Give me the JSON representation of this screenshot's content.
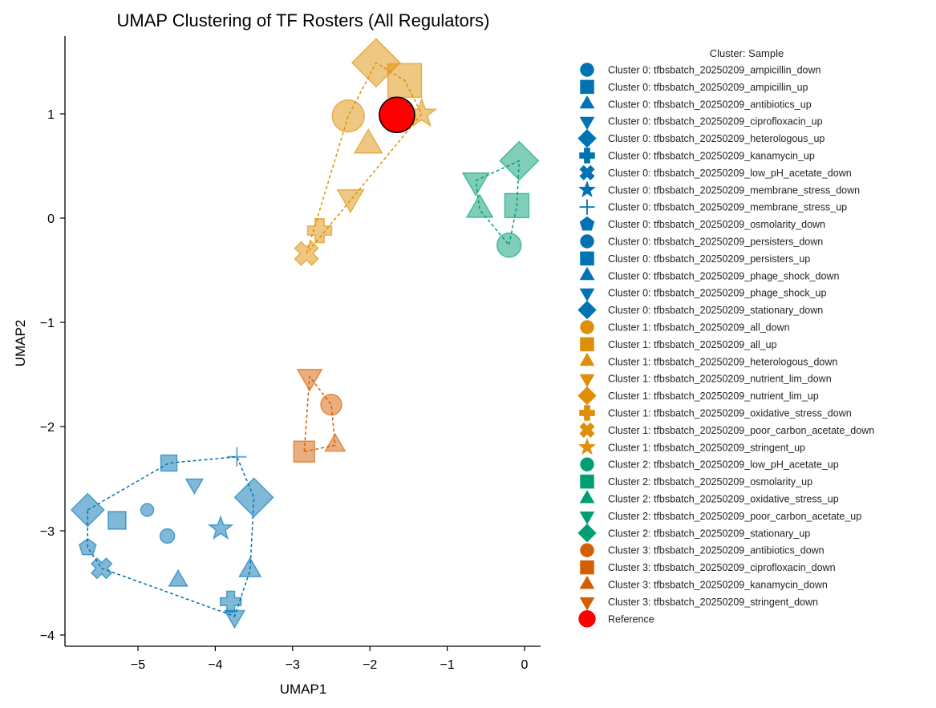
{
  "chart_data": {
    "type": "scatter",
    "title": "UMAP Clustering of TF Rosters (All Regulators)",
    "xlabel": "UMAP1",
    "ylabel": "UMAP2",
    "xlim": [
      -5.95,
      0.2
    ],
    "ylim": [
      -4.1,
      1.75
    ],
    "xticks": [
      -5,
      -4,
      -3,
      -2,
      -1,
      0
    ],
    "yticks": [
      -4,
      -3,
      -2,
      -1,
      0,
      1
    ],
    "grid": false,
    "legend_title": "Cluster: Sample",
    "legend_position": "right, outside plot",
    "cluster_colors": [
      "#0173b2",
      "#de8f05",
      "#029e73",
      "#d55e00"
    ],
    "reference_color": "#ff0000",
    "series": [
      {
        "name": "Cluster 0: tfbsbatch_20250209_ampicillin_down",
        "cluster": 0,
        "marker": "circle",
        "x": -4.88,
        "y": -2.8,
        "size": 16
      },
      {
        "name": "Cluster 0: tfbsbatch_20250209_ampicillin_up",
        "cluster": 0,
        "marker": "square",
        "x": -5.27,
        "y": -2.9,
        "size": 22
      },
      {
        "name": "Cluster 0: tfbsbatch_20250209_antibiotics_up",
        "cluster": 0,
        "marker": "triangle-up",
        "x": -4.48,
        "y": -3.48,
        "size": 24
      },
      {
        "name": "Cluster 0: tfbsbatch_20250209_ciprofloxacin_up",
        "cluster": 0,
        "marker": "triangle-down",
        "x": -4.27,
        "y": -2.55,
        "size": 22
      },
      {
        "name": "Cluster 0: tfbsbatch_20250209_heterologous_up",
        "cluster": 0,
        "marker": "diamond",
        "x": -3.5,
        "y": -2.68,
        "size": 40
      },
      {
        "name": "Cluster 0: tfbsbatch_20250209_kanamycin_up",
        "cluster": 0,
        "marker": "plus",
        "x": -3.8,
        "y": -3.68,
        "size": 26
      },
      {
        "name": "Cluster 0: tfbsbatch_20250209_low_pH_acetate_down",
        "cluster": 0,
        "marker": "x",
        "x": -5.47,
        "y": -3.36,
        "size": 26
      },
      {
        "name": "Cluster 0: tfbsbatch_20250209_membrane_stress_down",
        "cluster": 0,
        "marker": "star",
        "x": -3.93,
        "y": -2.98,
        "size": 26
      },
      {
        "name": "Cluster 0: tfbsbatch_20250209_membrane_stress_up",
        "cluster": 0,
        "marker": "thin-plus",
        "x": -3.72,
        "y": -2.29,
        "size": 24
      },
      {
        "name": "Cluster 0: tfbsbatch_20250209_osmolarity_down",
        "cluster": 0,
        "marker": "pentagon",
        "x": -5.65,
        "y": -3.16,
        "size": 22
      },
      {
        "name": "Cluster 0: tfbsbatch_20250209_persisters_down",
        "cluster": 0,
        "marker": "circle",
        "x": -4.62,
        "y": -3.05,
        "size": 18
      },
      {
        "name": "Cluster 0: tfbsbatch_20250209_persisters_up",
        "cluster": 0,
        "marker": "square",
        "x": -4.6,
        "y": -2.35,
        "size": 20
      },
      {
        "name": "Cluster 0: tfbsbatch_20250209_phage_shock_down",
        "cluster": 0,
        "marker": "triangle-up",
        "x": -3.55,
        "y": -3.38,
        "size": 28
      },
      {
        "name": "Cluster 0: tfbsbatch_20250209_phage_shock_up",
        "cluster": 0,
        "marker": "triangle-down",
        "x": -3.75,
        "y": -3.82,
        "size": 26
      },
      {
        "name": "Cluster 0: tfbsbatch_20250209_stationary_down",
        "cluster": 0,
        "marker": "diamond",
        "x": -5.65,
        "y": -2.8,
        "size": 34
      },
      {
        "name": "Cluster 1: tfbsbatch_20250209_all_down",
        "cluster": 1,
        "marker": "circle",
        "x": -2.28,
        "y": 0.98,
        "size": 40
      },
      {
        "name": "Cluster 1: tfbsbatch_20250209_all_up",
        "cluster": 1,
        "marker": "square",
        "x": -1.55,
        "y": 1.32,
        "size": 42
      },
      {
        "name": "Cluster 1: tfbsbatch_20250209_heterologous_down",
        "cluster": 1,
        "marker": "triangle-up",
        "x": -2.02,
        "y": 0.7,
        "size": 36
      },
      {
        "name": "Cluster 1: tfbsbatch_20250209_nutrient_lim_down",
        "cluster": 1,
        "marker": "triangle-down",
        "x": -2.25,
        "y": 0.2,
        "size": 34
      },
      {
        "name": "Cluster 1: tfbsbatch_20250209_nutrient_lim_up",
        "cluster": 1,
        "marker": "diamond",
        "x": -1.92,
        "y": 1.49,
        "size": 50
      },
      {
        "name": "Cluster 1: tfbsbatch_20250209_oxidative_stress_down",
        "cluster": 1,
        "marker": "plus",
        "x": -2.65,
        "y": -0.12,
        "size": 30
      },
      {
        "name": "Cluster 1: tfbsbatch_20250209_poor_carbon_acetate_down",
        "cluster": 1,
        "marker": "x",
        "x": -2.82,
        "y": -0.34,
        "size": 30
      },
      {
        "name": "Cluster 1: tfbsbatch_20250209_stringent_up",
        "cluster": 1,
        "marker": "star",
        "x": -1.33,
        "y": 1.0,
        "size": 32
      },
      {
        "name": "Cluster 2: tfbsbatch_20250209_low_pH_acetate_up",
        "cluster": 2,
        "marker": "circle",
        "x": -0.2,
        "y": -0.26,
        "size": 30
      },
      {
        "name": "Cluster 2: tfbsbatch_20250209_osmolarity_up",
        "cluster": 2,
        "marker": "square",
        "x": -0.1,
        "y": 0.12,
        "size": 30
      },
      {
        "name": "Cluster 2: tfbsbatch_20250209_oxidative_stress_up",
        "cluster": 2,
        "marker": "triangle-up",
        "x": -0.58,
        "y": 0.08,
        "size": 34
      },
      {
        "name": "Cluster 2: tfbsbatch_20250209_poor_carbon_acetate_up",
        "cluster": 2,
        "marker": "triangle-down",
        "x": -0.63,
        "y": 0.36,
        "size": 34
      },
      {
        "name": "Cluster 2: tfbsbatch_20250209_stationary_up",
        "cluster": 2,
        "marker": "diamond",
        "x": -0.07,
        "y": 0.55,
        "size": 40
      },
      {
        "name": "Cluster 3: tfbsbatch_20250209_antibiotics_down",
        "cluster": 3,
        "marker": "circle",
        "x": -2.5,
        "y": -1.79,
        "size": 26
      },
      {
        "name": "Cluster 3: tfbsbatch_20250209_ciprofloxacin_down",
        "cluster": 3,
        "marker": "square",
        "x": -2.85,
        "y": -2.24,
        "size": 26
      },
      {
        "name": "Cluster 3: tfbsbatch_20250209_kanamycin_down",
        "cluster": 3,
        "marker": "triangle-up",
        "x": -2.45,
        "y": -2.18,
        "size": 26
      },
      {
        "name": "Cluster 3: tfbsbatch_20250209_stringent_down",
        "cluster": 3,
        "marker": "triangle-down",
        "x": -2.78,
        "y": -1.52,
        "size": 32
      },
      {
        "name": "Reference",
        "cluster": "reference",
        "marker": "circle",
        "x": -1.65,
        "y": 0.99,
        "size": 44
      }
    ]
  }
}
